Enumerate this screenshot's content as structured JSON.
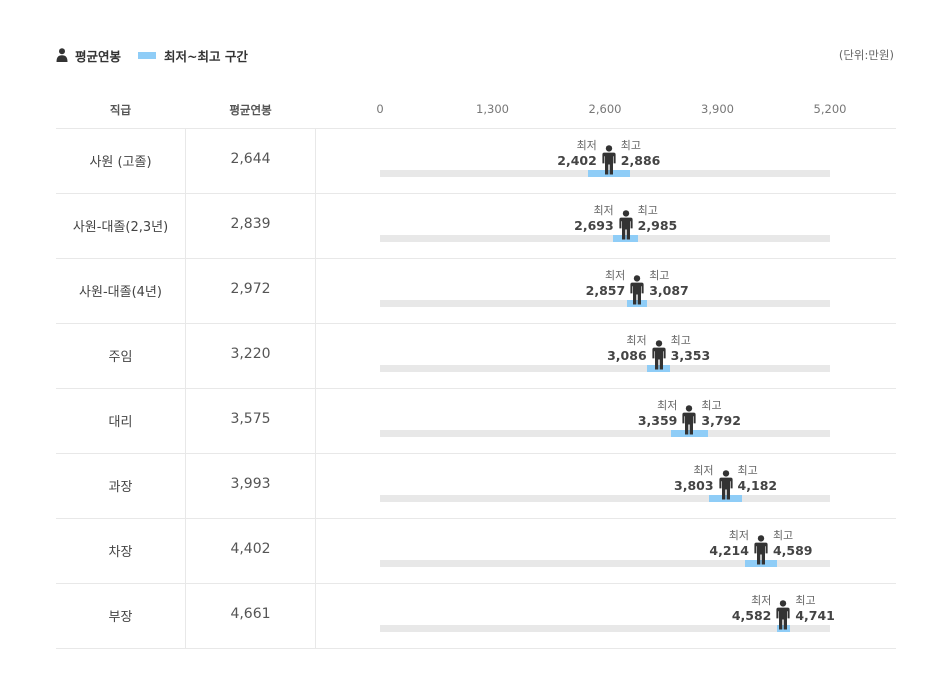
{
  "legend": {
    "avg_label": "평균연봉",
    "range_label": "최저~최고 구간"
  },
  "unit_label": "(단위:만원)",
  "headers": {
    "rank": "직급",
    "avg": "평균연봉"
  },
  "min_word": "최저",
  "max_word": "최고",
  "colors": {
    "range": "#8fcdf7",
    "track": "#e8e8e8",
    "person": "#333333"
  },
  "chart_data": {
    "type": "range-bar",
    "xlim": [
      0,
      5200
    ],
    "ticks": [
      "0",
      "1,300",
      "2,600",
      "3,900",
      "5,200"
    ],
    "tick_values": [
      0,
      1300,
      2600,
      3900,
      5200
    ],
    "rows": [
      {
        "rank": "사원 (고졸)",
        "avg": 2644,
        "avg_label": "2,644",
        "min": 2402,
        "min_label": "2,402",
        "max": 2886,
        "max_label": "2,886"
      },
      {
        "rank": "사원-대졸(2,3년)",
        "avg": 2839,
        "avg_label": "2,839",
        "min": 2693,
        "min_label": "2,693",
        "max": 2985,
        "max_label": "2,985"
      },
      {
        "rank": "사원-대졸(4년)",
        "avg": 2972,
        "avg_label": "2,972",
        "min": 2857,
        "min_label": "2,857",
        "max": 3087,
        "max_label": "3,087"
      },
      {
        "rank": "주임",
        "avg": 3220,
        "avg_label": "3,220",
        "min": 3086,
        "min_label": "3,086",
        "max": 3353,
        "max_label": "3,353"
      },
      {
        "rank": "대리",
        "avg": 3575,
        "avg_label": "3,575",
        "min": 3359,
        "min_label": "3,359",
        "max": 3792,
        "max_label": "3,792"
      },
      {
        "rank": "과장",
        "avg": 3993,
        "avg_label": "3,993",
        "min": 3803,
        "min_label": "3,803",
        "max": 4182,
        "max_label": "4,182"
      },
      {
        "rank": "차장",
        "avg": 4402,
        "avg_label": "4,402",
        "min": 4214,
        "min_label": "4,214",
        "max": 4589,
        "max_label": "4,589"
      },
      {
        "rank": "부장",
        "avg": 4661,
        "avg_label": "4,661",
        "min": 4582,
        "min_label": "4,582",
        "max": 4741,
        "max_label": "4,741"
      }
    ]
  }
}
